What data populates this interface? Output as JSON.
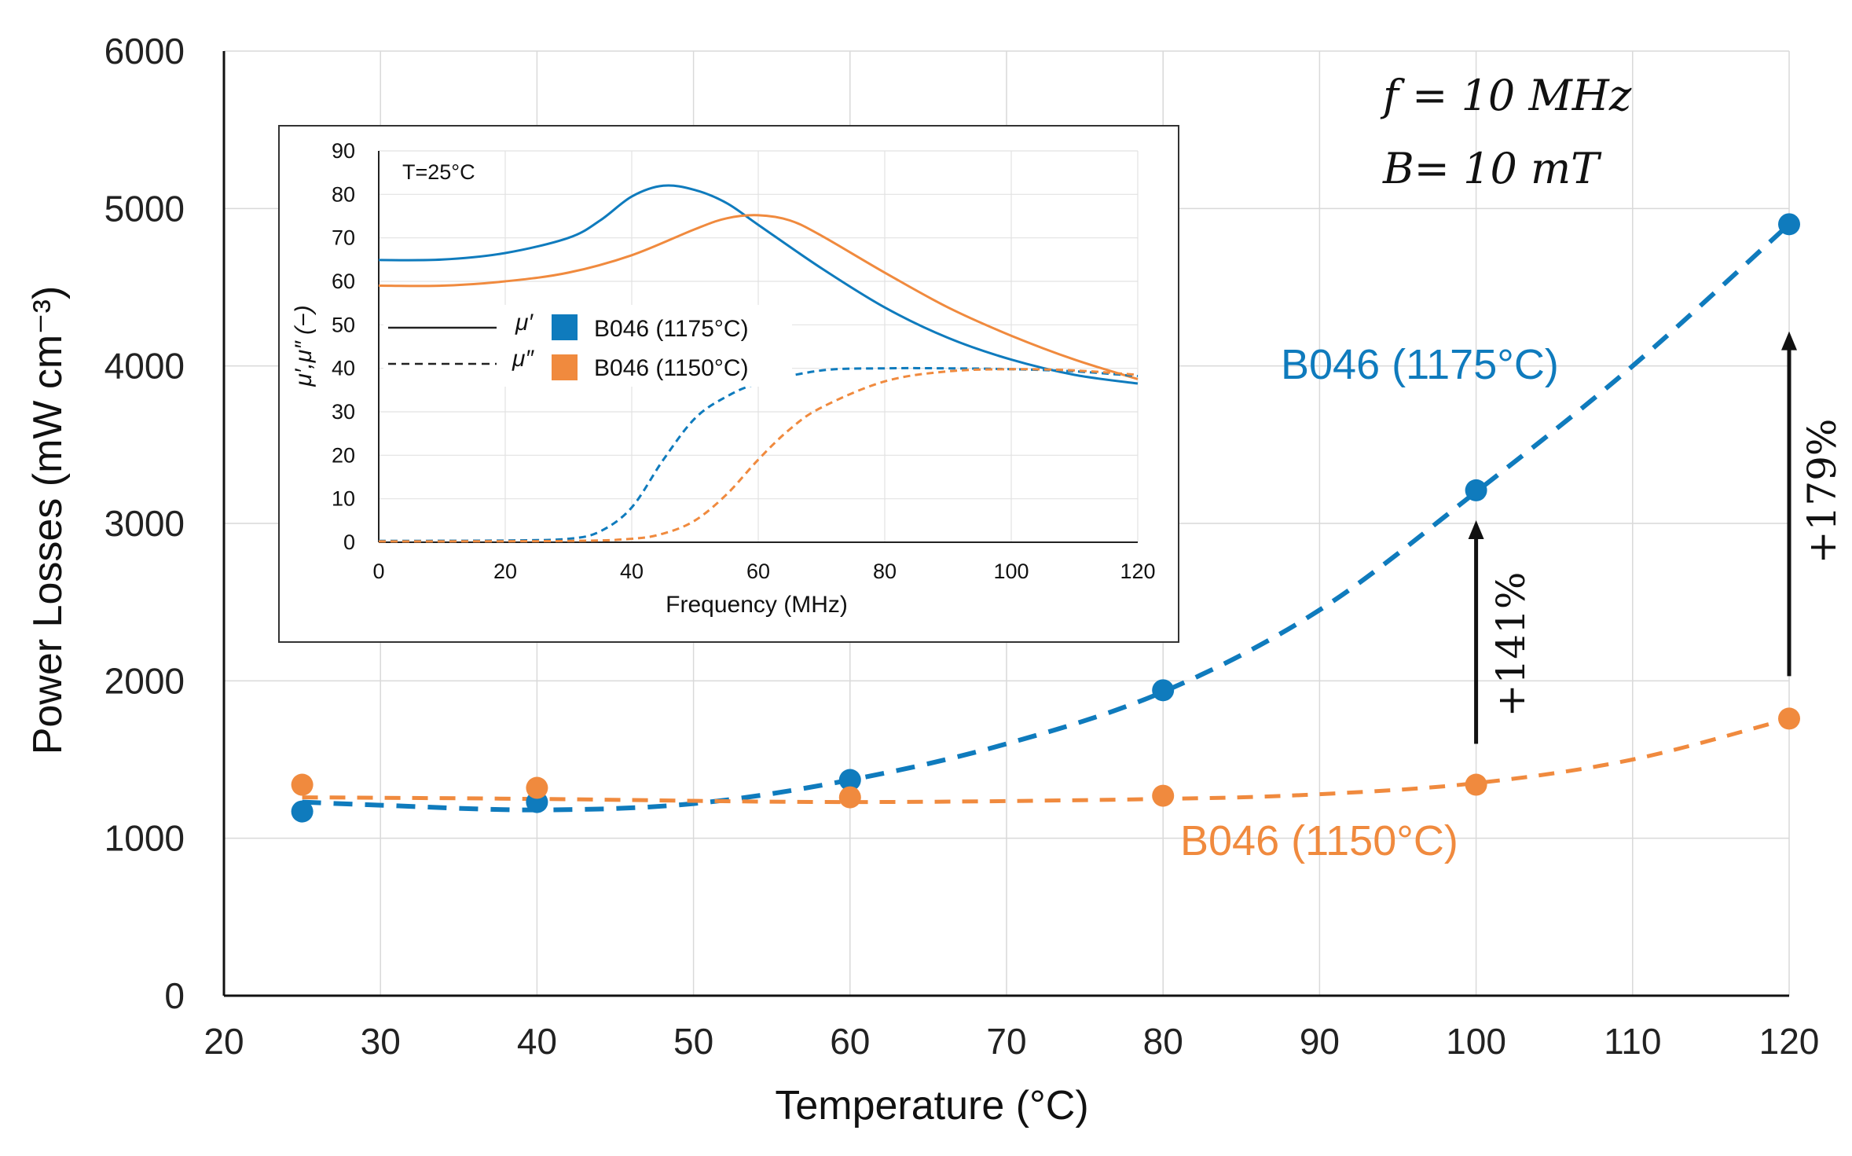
{
  "chart_data": [
    {
      "type": "scatter",
      "title": "",
      "xlabel": "Temperature (°C)",
      "ylabel": "Power Losses (mW cm⁻³)",
      "xlim": [
        20,
        120
      ],
      "ylim": [
        0,
        6000
      ],
      "x_ticks": [
        "20",
        "30",
        "40",
        "50",
        "60",
        "70",
        "80",
        "90",
        "100",
        "110",
        "120"
      ],
      "y_ticks": [
        "0",
        "1000",
        "2000",
        "3000",
        "4000",
        "5000",
        "6000"
      ],
      "conditions": {
        "f": "f = 10 MHz",
        "B": "B= 10 mT"
      },
      "series": [
        {
          "name": "B046 (1175°C)",
          "color": "#0f7bbd",
          "x": [
            25,
            40,
            60,
            80,
            100,
            120
          ],
          "y": [
            1170,
            1230,
            1370,
            1940,
            3210,
            4900
          ],
          "trend": {
            "x": [
              25,
              30,
              40,
              50,
              60,
              70,
              80,
              90,
              100,
              110,
              120
            ],
            "y": [
              1230,
              1210,
              1180,
              1220,
              1370,
              1600,
              1930,
              2450,
              3200,
              4000,
              4900
            ]
          }
        },
        {
          "name": "B046 (1150°C)",
          "color": "#f08a3e",
          "x": [
            25,
            40,
            60,
            80,
            100,
            120
          ],
          "y": [
            1340,
            1320,
            1260,
            1270,
            1340,
            1760
          ],
          "trend": {
            "x": [
              25,
              40,
              60,
              80,
              90,
              100,
              110,
              120
            ],
            "y": [
              1260,
              1250,
              1230,
              1250,
              1280,
              1350,
              1500,
              1760
            ]
          }
        }
      ],
      "annotations": [
        {
          "text": "+141%",
          "x": 100,
          "from": 1600,
          "to": 3000
        },
        {
          "text": "+179%",
          "x": 120,
          "from": 2030,
          "to": 4200
        }
      ]
    },
    {
      "type": "line",
      "title": "T=25°C",
      "xlabel": "Frequency (MHz)",
      "ylabel": "μ′,μ″ (−)",
      "xlim": [
        0,
        120
      ],
      "ylim": [
        0,
        90
      ],
      "x_ticks": [
        "0",
        "20",
        "40",
        "60",
        "80",
        "100",
        "120"
      ],
      "y_ticks": [
        "0",
        "10",
        "20",
        "30",
        "40",
        "50",
        "60",
        "70",
        "80",
        "90"
      ],
      "legend": {
        "line_labels": [
          "μ′",
          "μ″"
        ],
        "series_labels": [
          "B046  (1175°C)",
          "B046  (1150°C)"
        ]
      },
      "series": [
        {
          "name": "B046 (1175°C) μ′",
          "color": "#0f7bbd",
          "dash": false,
          "x": [
            0,
            10,
            20,
            30,
            35,
            40,
            45,
            50,
            55,
            60,
            70,
            80,
            90,
            100,
            110,
            120
          ],
          "y": [
            64.9,
            65,
            66.5,
            70,
            74,
            79.5,
            82,
            81,
            78,
            73,
            63,
            54,
            47,
            42,
            38.5,
            36.5
          ]
        },
        {
          "name": "B046 (1150°C) μ′",
          "color": "#f08a3e",
          "dash": false,
          "x": [
            0,
            10,
            20,
            30,
            40,
            50,
            55,
            60,
            65,
            70,
            80,
            90,
            100,
            110,
            120
          ],
          "y": [
            59,
            59,
            60,
            62,
            66,
            72,
            74.5,
            75.2,
            74,
            70.5,
            62,
            54,
            47.5,
            42,
            37.5
          ]
        },
        {
          "name": "B046 (1175°C) μ″",
          "color": "#0f7bbd",
          "dash": true,
          "x": [
            0,
            20,
            30,
            35,
            40,
            45,
            50,
            55,
            60,
            70,
            80,
            90,
            100,
            110,
            120
          ],
          "y": [
            0.3,
            0.4,
            0.8,
            2.5,
            8,
            19,
            28.5,
            33.5,
            36.5,
            39.5,
            40,
            40,
            39.8,
            39.3,
            38.2
          ]
        },
        {
          "name": "B046 (1150°C) μ″",
          "color": "#f08a3e",
          "dash": true,
          "x": [
            0,
            30,
            40,
            45,
            50,
            55,
            60,
            65,
            70,
            80,
            90,
            100,
            110,
            120
          ],
          "y": [
            0.2,
            0.3,
            0.8,
            2,
            5,
            11,
            19,
            26,
            31,
            37,
            39.3,
            39.8,
            39.5,
            38.5
          ]
        }
      ]
    }
  ]
}
